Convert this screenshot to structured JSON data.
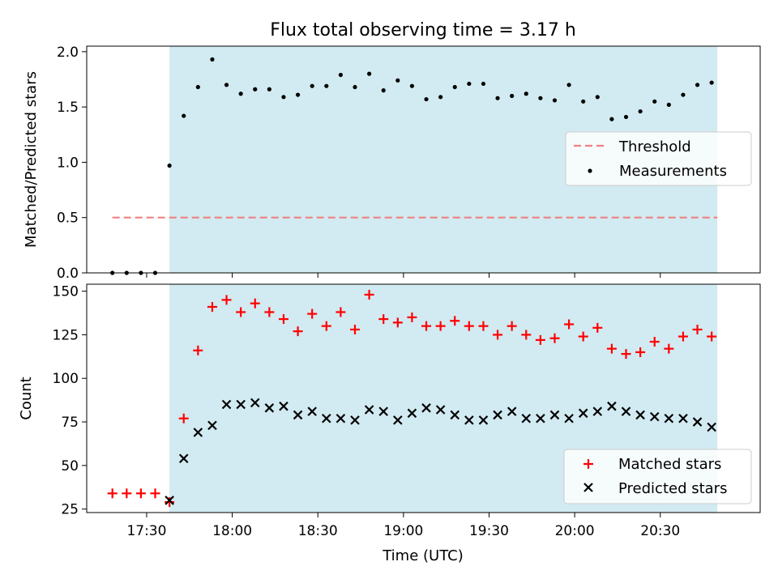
{
  "title": "Flux total observing time = 3.17 h",
  "xlabel": "Time (UTC)",
  "x_ticks": [
    "17:30",
    "18:00",
    "18:30",
    "19:00",
    "19:30",
    "20:00",
    "20:30"
  ],
  "chart_data": [
    {
      "type": "scatter",
      "title": "Flux total observing time = 3.17 h",
      "xlabel": "",
      "ylabel": "Matched/Predicted stars",
      "xlim": [
        "17:09",
        "21:05"
      ],
      "ylim": [
        0,
        2.05
      ],
      "y_ticks": [
        "0.0",
        "0.5",
        "1.0",
        "1.5",
        "2.0"
      ],
      "shaded_interval": {
        "start": "17:38",
        "end": "20:50",
        "color": "#add8e6"
      },
      "threshold": {
        "name": "Threshold",
        "value": 0.5,
        "x_start": "17:18",
        "x_end": "20:50",
        "color": "#f08080",
        "style": "dashed"
      },
      "legend": {
        "position": "center-right",
        "entries": [
          "Threshold",
          "Measurements"
        ]
      },
      "series": [
        {
          "name": "Measurements",
          "marker": "dot",
          "color": "#000000",
          "points": [
            [
              "17:18",
              0.0
            ],
            [
              "17:23",
              0.0
            ],
            [
              "17:28",
              0.0
            ],
            [
              "17:33",
              0.0
            ],
            [
              "17:38",
              0.97
            ],
            [
              "17:43",
              1.42
            ],
            [
              "17:48",
              1.68
            ],
            [
              "17:53",
              1.93
            ],
            [
              "17:58",
              1.7
            ],
            [
              "18:03",
              1.62
            ],
            [
              "18:08",
              1.66
            ],
            [
              "18:13",
              1.66
            ],
            [
              "18:18",
              1.59
            ],
            [
              "18:23",
              1.61
            ],
            [
              "18:28",
              1.69
            ],
            [
              "18:33",
              1.69
            ],
            [
              "18:38",
              1.79
            ],
            [
              "18:43",
              1.68
            ],
            [
              "18:48",
              1.8
            ],
            [
              "18:53",
              1.65
            ],
            [
              "18:58",
              1.74
            ],
            [
              "19:03",
              1.69
            ],
            [
              "19:08",
              1.57
            ],
            [
              "19:13",
              1.59
            ],
            [
              "19:18",
              1.68
            ],
            [
              "19:23",
              1.71
            ],
            [
              "19:28",
              1.71
            ],
            [
              "19:33",
              1.58
            ],
            [
              "19:38",
              1.6
            ],
            [
              "19:43",
              1.62
            ],
            [
              "19:48",
              1.58
            ],
            [
              "19:53",
              1.56
            ],
            [
              "19:58",
              1.7
            ],
            [
              "20:03",
              1.55
            ],
            [
              "20:08",
              1.59
            ],
            [
              "20:13",
              1.39
            ],
            [
              "20:18",
              1.41
            ],
            [
              "20:23",
              1.46
            ],
            [
              "20:28",
              1.55
            ],
            [
              "20:33",
              1.52
            ],
            [
              "20:38",
              1.61
            ],
            [
              "20:43",
              1.7
            ],
            [
              "20:48",
              1.72
            ]
          ]
        }
      ]
    },
    {
      "type": "scatter",
      "title": "",
      "xlabel": "Time (UTC)",
      "ylabel": "Count",
      "xlim": [
        "17:09",
        "21:05"
      ],
      "ylim": [
        23,
        154
      ],
      "y_ticks": [
        "25",
        "50",
        "75",
        "100",
        "125",
        "150"
      ],
      "shaded_interval": {
        "start": "17:38",
        "end": "20:50",
        "color": "#add8e6"
      },
      "legend": {
        "position": "bottom-right",
        "entries": [
          "Matched stars",
          "Predicted stars"
        ]
      },
      "series": [
        {
          "name": "Matched stars",
          "marker": "plus",
          "color": "#ff0000",
          "points": [
            [
              "17:18",
              34
            ],
            [
              "17:23",
              34
            ],
            [
              "17:28",
              34
            ],
            [
              "17:33",
              34
            ],
            [
              "17:38",
              29
            ],
            [
              "17:43",
              77
            ],
            [
              "17:48",
              116
            ],
            [
              "17:53",
              141
            ],
            [
              "17:58",
              145
            ],
            [
              "18:03",
              138
            ],
            [
              "18:08",
              143
            ],
            [
              "18:13",
              138
            ],
            [
              "18:18",
              134
            ],
            [
              "18:23",
              127
            ],
            [
              "18:28",
              137
            ],
            [
              "18:33",
              130
            ],
            [
              "18:38",
              138
            ],
            [
              "18:43",
              128
            ],
            [
              "18:48",
              148
            ],
            [
              "18:53",
              134
            ],
            [
              "18:58",
              132
            ],
            [
              "19:03",
              135
            ],
            [
              "19:08",
              130
            ],
            [
              "19:13",
              130
            ],
            [
              "19:18",
              133
            ],
            [
              "19:23",
              130
            ],
            [
              "19:28",
              130
            ],
            [
              "19:33",
              125
            ],
            [
              "19:38",
              130
            ],
            [
              "19:43",
              125
            ],
            [
              "19:48",
              122
            ],
            [
              "19:53",
              123
            ],
            [
              "19:58",
              131
            ],
            [
              "20:03",
              124
            ],
            [
              "20:08",
              129
            ],
            [
              "20:13",
              117
            ],
            [
              "20:18",
              114
            ],
            [
              "20:23",
              115
            ],
            [
              "20:28",
              121
            ],
            [
              "20:33",
              117
            ],
            [
              "20:38",
              124
            ],
            [
              "20:43",
              128
            ],
            [
              "20:48",
              124
            ]
          ]
        },
        {
          "name": "Predicted stars",
          "marker": "x",
          "color": "#000000",
          "points": [
            [
              "17:38",
              30
            ],
            [
              "17:43",
              54
            ],
            [
              "17:48",
              69
            ],
            [
              "17:53",
              73
            ],
            [
              "17:58",
              85
            ],
            [
              "18:03",
              85
            ],
            [
              "18:08",
              86
            ],
            [
              "18:13",
              83
            ],
            [
              "18:18",
              84
            ],
            [
              "18:23",
              79
            ],
            [
              "18:28",
              81
            ],
            [
              "18:33",
              77
            ],
            [
              "18:38",
              77
            ],
            [
              "18:43",
              76
            ],
            [
              "18:48",
              82
            ],
            [
              "18:53",
              81
            ],
            [
              "18:58",
              76
            ],
            [
              "19:03",
              80
            ],
            [
              "19:08",
              83
            ],
            [
              "19:13",
              82
            ],
            [
              "19:18",
              79
            ],
            [
              "19:23",
              76
            ],
            [
              "19:28",
              76
            ],
            [
              "19:33",
              79
            ],
            [
              "19:38",
              81
            ],
            [
              "19:43",
              77
            ],
            [
              "19:48",
              77
            ],
            [
              "19:53",
              79
            ],
            [
              "19:58",
              77
            ],
            [
              "20:03",
              80
            ],
            [
              "20:08",
              81
            ],
            [
              "20:13",
              84
            ],
            [
              "20:18",
              81
            ],
            [
              "20:23",
              79
            ],
            [
              "20:28",
              78
            ],
            [
              "20:33",
              77
            ],
            [
              "20:38",
              77
            ],
            [
              "20:43",
              75
            ],
            [
              "20:48",
              72
            ]
          ]
        }
      ]
    }
  ]
}
